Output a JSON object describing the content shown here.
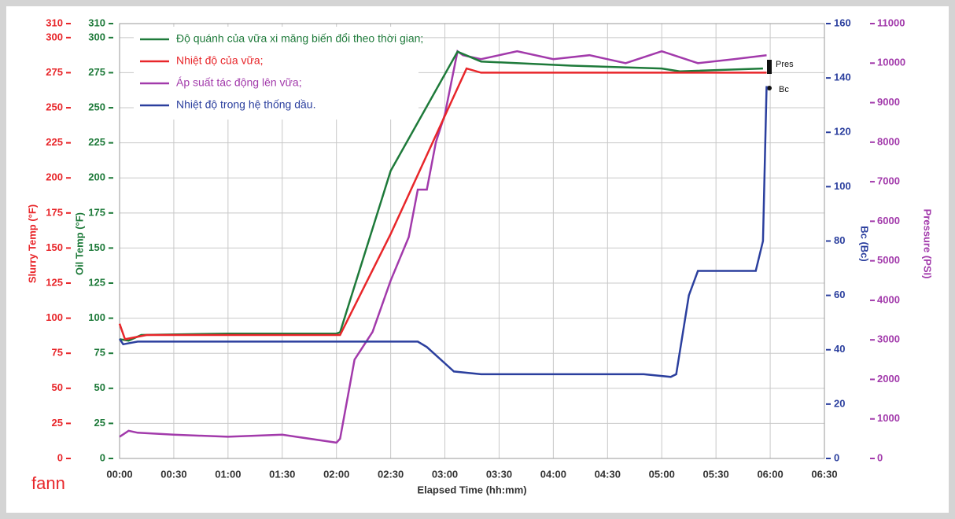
{
  "chart_data": {
    "type": "line",
    "xlabel": "Elapsed Time (hh:mm)",
    "ylabel": "Slurry Temp (°F)",
    "ylabel_inner": "Oil Temp (°F)",
    "y2label": "Bc (Bc)",
    "y3label": "Pressure (PSI)",
    "logo": "fann",
    "xlim": [
      0,
      390
    ],
    "xticks": [
      {
        "value": 0,
        "label": "00:00"
      },
      {
        "value": 30,
        "label": "00:30"
      },
      {
        "value": 60,
        "label": "01:00"
      },
      {
        "value": 90,
        "label": "01:30"
      },
      {
        "value": 120,
        "label": "02:00"
      },
      {
        "value": 150,
        "label": "02:30"
      },
      {
        "value": 180,
        "label": "03:00"
      },
      {
        "value": 210,
        "label": "03:30"
      },
      {
        "value": 240,
        "label": "04:00"
      },
      {
        "value": 270,
        "label": "04:30"
      },
      {
        "value": 300,
        "label": "05:00"
      },
      {
        "value": 330,
        "label": "05:30"
      },
      {
        "value": 360,
        "label": "06:00"
      },
      {
        "value": 390,
        "label": "06:30"
      }
    ],
    "ylim": [
      0,
      310
    ],
    "yticks": [
      0,
      25,
      50,
      75,
      100,
      125,
      150,
      175,
      200,
      225,
      250,
      275,
      300,
      310
    ],
    "y2lim": [
      0,
      160
    ],
    "y2ticks": [
      0,
      20,
      40,
      60,
      80,
      100,
      120,
      140,
      160
    ],
    "y3lim": [
      0,
      11000
    ],
    "y3ticks": [
      0,
      1000,
      2000,
      3000,
      4000,
      5000,
      6000,
      7000,
      8000,
      9000,
      10000,
      11000
    ],
    "grid": true,
    "legend": "top-left",
    "series": [
      {
        "name": "Độ quánh của vữa xi măng biến đổi theo thời gian;",
        "color": "#1e7a3a",
        "axis": "y",
        "x": [
          0,
          5,
          12,
          60,
          120,
          122,
          150,
          187,
          200,
          250,
          300,
          310,
          356
        ],
        "values": [
          85,
          84,
          88,
          89,
          89,
          90,
          205,
          290,
          283,
          280,
          278,
          276,
          278
        ]
      },
      {
        "name": "Nhiệt độ của vữa;",
        "color": "#e8262a",
        "axis": "y",
        "x": [
          0,
          3,
          15,
          60,
          122,
          150,
          192,
          200,
          300,
          358
        ],
        "values": [
          96,
          85,
          88,
          88,
          88,
          160,
          278,
          275,
          275,
          275
        ]
      },
      {
        "name": "Áp suất tác động lên vữa;",
        "color": "#a23aab",
        "axis": "y3",
        "x": [
          0,
          5,
          10,
          30,
          60,
          90,
          120,
          122,
          130,
          140,
          150,
          160,
          165,
          170,
          175,
          180,
          187,
          190,
          200,
          220,
          240,
          260,
          280,
          300,
          320,
          340,
          358
        ],
        "values": [
          550,
          700,
          650,
          600,
          550,
          600,
          400,
          500,
          2500,
          3200,
          4500,
          5600,
          6800,
          6800,
          8000,
          8700,
          10300,
          10200,
          10100,
          10300,
          10100,
          10200,
          10000,
          10300,
          10000,
          10100,
          10200
        ]
      },
      {
        "name": "Nhiệt độ trong hệ thống dầu.",
        "color": "#2b3f9e",
        "axis": "y2",
        "x": [
          0,
          2,
          10,
          30,
          60,
          90,
          120,
          150,
          165,
          170,
          175,
          180,
          185,
          200,
          230,
          260,
          290,
          305,
          308,
          315,
          320,
          340,
          352,
          356,
          358
        ],
        "values": [
          44,
          42,
          43,
          43,
          43,
          43,
          43,
          43,
          43,
          41,
          38,
          35,
          32,
          31,
          31,
          31,
          31,
          30,
          31,
          60,
          69,
          69,
          69,
          80,
          137
        ]
      }
    ],
    "annotations": [
      "Pres",
      "Bc"
    ]
  }
}
